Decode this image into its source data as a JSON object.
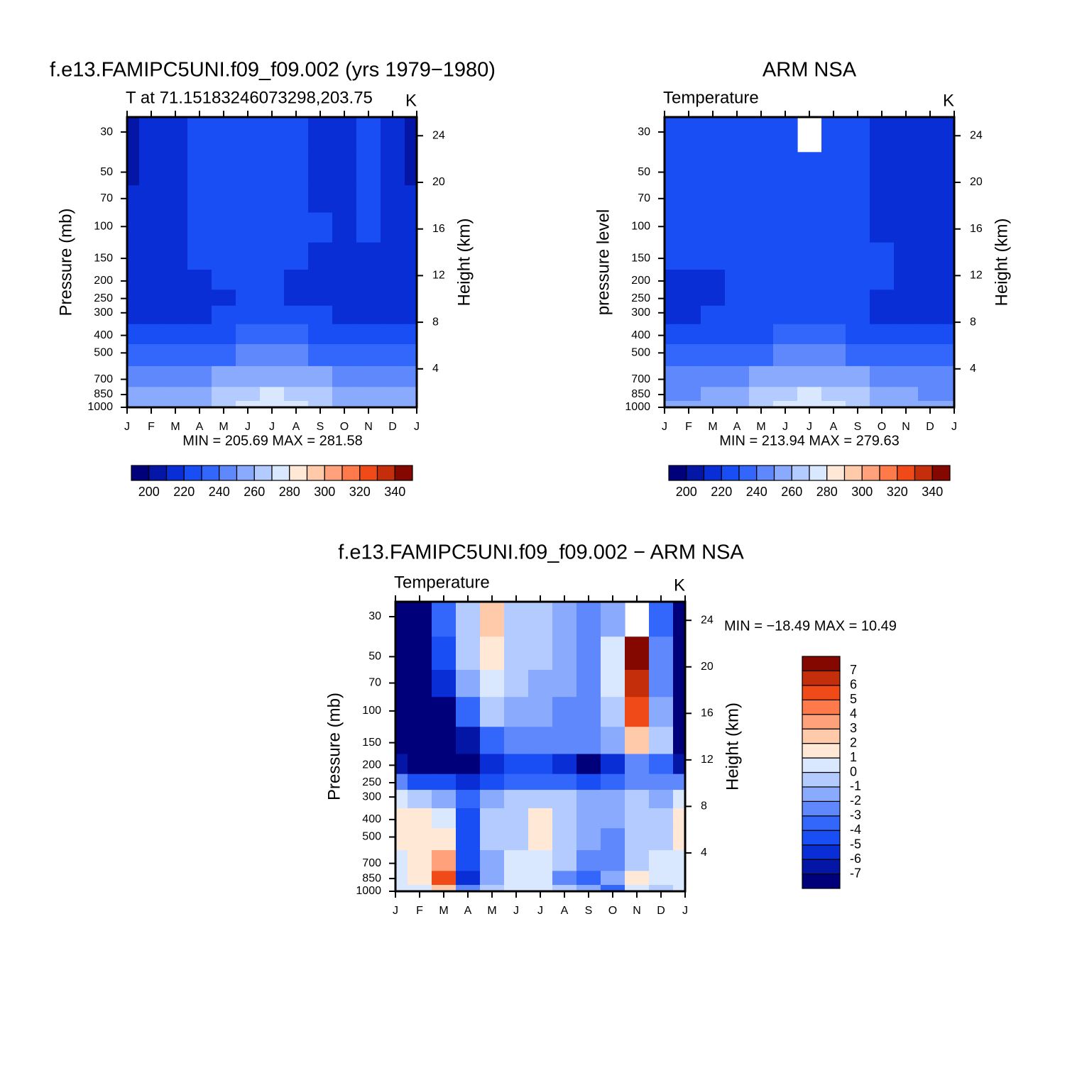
{
  "chart_data": [
    {
      "type": "contour",
      "title": "f.e13.FAMIPC5UNI.f09_f09.002 (yrs 1979−1980)",
      "left_string": "T at 71.15183246073298,203.75",
      "right_string": "K",
      "ylabel": "Pressure (mb)",
      "y2label": "Height (km)",
      "stats": "MIN =  205.69 MAX =  281.58",
      "categories": [
        "J",
        "F",
        "M",
        "A",
        "M",
        "J",
        "J",
        "A",
        "S",
        "O",
        "N",
        "D",
        "J"
      ],
      "y": [
        30,
        50,
        70,
        100,
        150,
        200,
        250,
        300,
        400,
        500,
        700,
        850,
        1000
      ],
      "log_y": true,
      "ylim": [
        1000,
        24.8
      ],
      "yticks": [
        30,
        50,
        70,
        100,
        150,
        200,
        250,
        300,
        400,
        500,
        700,
        850,
        1000
      ],
      "y2lim": [
        0.7,
        25.6
      ],
      "y2ticks": [
        24,
        20,
        16,
        12,
        8,
        4
      ],
      "values": [
        [
          206,
          214,
          216,
          222,
          226,
          227,
          226,
          223,
          215,
          218,
          223,
          214,
          206
        ],
        [
          208,
          214,
          217,
          223,
          227,
          228,
          227,
          224,
          216,
          217,
          222,
          214,
          208
        ],
        [
          212,
          215,
          218,
          223,
          227,
          227,
          226,
          224,
          218,
          217,
          222,
          215,
          212
        ],
        [
          214,
          215,
          218,
          222,
          226,
          226,
          225,
          223,
          220,
          219,
          221,
          215,
          214
        ],
        [
          215,
          216,
          217,
          220,
          224,
          224,
          223,
          222,
          219,
          217,
          219,
          215,
          215
        ],
        [
          216,
          216,
          217,
          219,
          221,
          221,
          220,
          219,
          218,
          217,
          217,
          216,
          216
        ],
        [
          217,
          217,
          218,
          218,
          219,
          221,
          220,
          219,
          218,
          217,
          217,
          217,
          217
        ],
        [
          219,
          219,
          219,
          219,
          221,
          223,
          222,
          221,
          220,
          219,
          219,
          219,
          219
        ],
        [
          225,
          225,
          225,
          226,
          229,
          232,
          231,
          230,
          228,
          226,
          225,
          225,
          225
        ],
        [
          233,
          233,
          233,
          234,
          237,
          241,
          241,
          240,
          237,
          234,
          233,
          233,
          233
        ],
        [
          244,
          244,
          245,
          247,
          252,
          257,
          258,
          256,
          252,
          247,
          245,
          244,
          244
        ],
        [
          250,
          250,
          251,
          254,
          262,
          268,
          270,
          268,
          261,
          255,
          252,
          250,
          250
        ],
        [
          255,
          254,
          255,
          258,
          267,
          274,
          276,
          274,
          266,
          259,
          256,
          255,
          255
        ]
      ],
      "contour_levels": [
        200,
        210,
        220,
        230,
        240,
        250,
        260,
        270,
        280,
        290,
        300,
        310,
        320,
        330,
        340
      ],
      "colorbar_ticks": [
        200,
        220,
        240,
        260,
        280,
        300,
        320,
        340
      ],
      "colorbar_orientation": "horizontal",
      "colors": [
        "#00007a",
        "#0416a6",
        "#0a2ed6",
        "#1a4ef5",
        "#3366fb",
        "#5e88fc",
        "#8aaafd",
        "#b3cbfe",
        "#d9e8ff",
        "#ffe8d6",
        "#ffcaaa",
        "#ffa27c",
        "#ff7a4a",
        "#f04a18",
        "#c42e0a",
        "#840700"
      ]
    },
    {
      "type": "contour",
      "title": "ARM NSA",
      "left_string": "Temperature",
      "right_string": "K",
      "ylabel": "pressure level",
      "y2label": "Height (km)",
      "stats": "MIN =  213.94 MAX =  279.63",
      "categories": [
        "J",
        "F",
        "M",
        "A",
        "M",
        "J",
        "J",
        "A",
        "S",
        "O",
        "N",
        "D",
        "J"
      ],
      "y": [
        30,
        50,
        70,
        100,
        150,
        200,
        250,
        300,
        400,
        500,
        700,
        850,
        1000
      ],
      "log_y": true,
      "ylim": [
        1000,
        24.8
      ],
      "yticks": [
        30,
        50,
        70,
        100,
        150,
        200,
        250,
        300,
        400,
        500,
        700,
        850,
        1000
      ],
      "y2lim": [
        0.7,
        25.6
      ],
      "y2ticks": [
        24,
        20,
        16,
        12,
        8,
        4
      ],
      "values": [
        [
          222,
          222,
          223,
          224,
          225,
          226,
          null,
          225,
          222,
          216,
          215,
          215,
          218
        ],
        [
          222,
          222,
          223,
          224,
          225,
          226,
          226,
          225,
          222,
          216,
          214,
          214,
          217
        ],
        [
          222,
          222,
          223,
          224,
          225,
          226,
          226,
          225,
          223,
          217,
          214,
          214,
          216
        ],
        [
          222,
          222,
          223,
          224,
          225,
          226,
          226,
          225,
          223,
          218,
          214,
          214,
          215
        ],
        [
          220,
          222,
          223,
          224,
          225,
          226,
          226,
          225,
          224,
          221,
          215,
          214,
          214
        ],
        [
          216,
          217,
          219,
          222,
          224,
          225,
          225,
          224,
          222,
          220,
          215,
          214,
          215
        ],
        [
          215,
          216,
          217,
          221,
          223,
          224,
          224,
          223,
          222,
          219,
          216,
          215,
          215
        ],
        [
          218,
          219,
          220,
          221,
          223,
          224,
          224,
          224,
          222,
          219,
          218,
          218,
          218
        ],
        [
          226,
          226,
          226,
          227,
          229,
          231,
          232,
          231,
          229,
          226,
          226,
          226,
          226
        ],
        [
          233,
          233,
          233,
          234,
          237,
          240,
          241,
          240,
          237,
          234,
          233,
          233,
          233
        ],
        [
          243,
          243,
          244,
          246,
          252,
          257,
          258,
          256,
          252,
          247,
          244,
          243,
          243
        ],
        [
          249,
          249,
          250,
          253,
          262,
          268,
          270,
          268,
          261,
          255,
          251,
          249,
          249
        ],
        [
          252,
          252,
          253,
          256,
          265,
          273,
          275,
          273,
          265,
          258,
          254,
          252,
          252
        ]
      ],
      "contour_levels": [
        200,
        210,
        220,
        230,
        240,
        250,
        260,
        270,
        280,
        290,
        300,
        310,
        320,
        330,
        340
      ],
      "colorbar_ticks": [
        200,
        220,
        240,
        260,
        280,
        300,
        320,
        340
      ],
      "colorbar_orientation": "horizontal",
      "colors": [
        "#00007a",
        "#0416a6",
        "#0a2ed6",
        "#1a4ef5",
        "#3366fb",
        "#5e88fc",
        "#8aaafd",
        "#b3cbfe",
        "#d9e8ff",
        "#ffe8d6",
        "#ffcaaa",
        "#ffa27c",
        "#ff7a4a",
        "#f04a18",
        "#c42e0a",
        "#840700"
      ]
    },
    {
      "type": "contour",
      "title": "f.e13.FAMIPC5UNI.f09_f09.002 − ARM NSA",
      "left_string": "Temperature",
      "right_string": "K",
      "ylabel": "Pressure (mb)",
      "y2label": "Height (km)",
      "stats": "MIN = −18.49 MAX =   10.49",
      "categories": [
        "J",
        "F",
        "M",
        "A",
        "M",
        "J",
        "J",
        "A",
        "S",
        "O",
        "N",
        "D",
        "J"
      ],
      "y": [
        30,
        50,
        70,
        100,
        150,
        200,
        250,
        300,
        400,
        500,
        700,
        850,
        1000
      ],
      "log_y": true,
      "ylim": [
        1000,
        24.8
      ],
      "yticks": [
        30,
        50,
        70,
        100,
        150,
        200,
        250,
        300,
        400,
        500,
        700,
        850,
        1000
      ],
      "y2lim": [
        0.7,
        25.6
      ],
      "y2ticks": [
        24,
        20,
        16,
        12,
        8,
        4
      ],
      "values": [
        [
          -9,
          -9,
          -4,
          -1,
          2.5,
          -0.5,
          -1,
          -2,
          -3,
          -2,
          null,
          -4,
          -9
        ],
        [
          -9,
          -9,
          -5,
          -1,
          1.5,
          -0.5,
          -1,
          -2,
          -3,
          0,
          7,
          -3,
          -9
        ],
        [
          -9,
          -9,
          -6,
          -2,
          0.5,
          -1,
          -1.5,
          -2,
          -3,
          0,
          6,
          -3,
          -9
        ],
        [
          -9,
          -9,
          -8,
          -4,
          -1,
          -1.5,
          -2,
          -2.5,
          -3,
          -1,
          5,
          -2,
          -9
        ],
        [
          -8,
          -9,
          -9,
          -7,
          -4,
          -3,
          -2.5,
          -3,
          -2.5,
          -2,
          2,
          -1,
          -8
        ],
        [
          -7,
          -9,
          -9,
          -8,
          -6,
          -5,
          -5,
          -5.5,
          -7.5,
          -6,
          -3,
          -4,
          -7
        ],
        [
          -3,
          -5,
          -5,
          -6,
          -5,
          -4,
          -4,
          -4,
          -5,
          -4,
          -3,
          -3,
          -3
        ],
        [
          0.5,
          -1,
          -2,
          -4,
          -2,
          -1,
          -0.5,
          -1,
          -2,
          -2,
          -1,
          -2,
          0.5
        ],
        [
          1,
          1,
          0.5,
          -5,
          -1,
          -0.5,
          1.5,
          -0.5,
          -2,
          -2,
          -0.5,
          -1,
          1
        ],
        [
          1,
          1,
          1,
          -5,
          -1,
          -0.5,
          1.5,
          -0.5,
          -2,
          -3,
          -0.5,
          -1,
          1
        ],
        [
          0.5,
          1,
          3,
          -5,
          -2,
          0.5,
          0.5,
          -1,
          -3,
          -3,
          -1,
          0.5,
          0.5
        ],
        [
          0.5,
          1,
          5,
          -6,
          -2,
          0.5,
          0.5,
          -3,
          -4,
          -2,
          1,
          0.5,
          0.5
        ],
        [
          0,
          0.5,
          2,
          -3,
          -1,
          0,
          0.5,
          -1,
          -2,
          -4,
          0,
          -0.5,
          0
        ]
      ],
      "contour_levels": [
        -7,
        -6,
        -5,
        -4,
        -3,
        -2,
        -1,
        0,
        1,
        2,
        3,
        4,
        5,
        6,
        7
      ],
      "colorbar_ticks": [
        -7,
        -6,
        -5,
        -4,
        -3,
        -2,
        -1,
        0,
        1,
        2,
        3,
        4,
        5,
        6,
        7
      ],
      "colorbar_orientation": "vertical",
      "colors": [
        "#00007a",
        "#0416a6",
        "#0a2ed6",
        "#1a4ef5",
        "#3366fb",
        "#5e88fc",
        "#8aaafd",
        "#b3cbfe",
        "#d9e8ff",
        "#ffe8d6",
        "#ffcaaa",
        "#ffa27c",
        "#ff7a4a",
        "#f04a18",
        "#c42e0a",
        "#840700"
      ]
    }
  ]
}
